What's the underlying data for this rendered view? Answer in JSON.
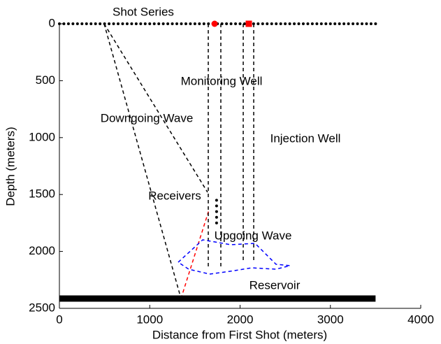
{
  "chart_data": {
    "type": "line",
    "xlabel": "Distance from First Shot (meters)",
    "ylabel": "Depth (meters)",
    "xlim": [
      0,
      4000
    ],
    "xticks": [
      0,
      1000,
      2000,
      3000,
      4000
    ],
    "ylim": [
      0,
      2500
    ],
    "yticks": [
      0,
      500,
      1000,
      1500,
      2000,
      2500
    ],
    "y_inverted": true,
    "annotations": [
      "Shot Series",
      "Monitoring Well",
      "Downgoing Wave",
      "Injection Well",
      "Receivers",
      "Upgoing Wave",
      "Reservoir"
    ],
    "series": [
      {
        "color": "#000000",
        "style": "dots",
        "x": [
          0,
          50,
          100,
          150,
          200,
          250,
          300,
          350,
          400,
          450,
          500,
          550,
          600,
          650,
          700,
          750,
          800,
          850,
          900,
          950,
          1000,
          1050,
          1100,
          1150,
          1200,
          1250,
          1300,
          1350,
          1400,
          1450,
          1500,
          1550,
          1600,
          1650,
          1700,
          1750,
          1800,
          1850,
          1900,
          1950,
          2000,
          2050,
          2100,
          2150,
          2200,
          2250,
          2300,
          2350,
          2400,
          2450,
          2500,
          2550,
          2600,
          2650,
          2700,
          2750,
          2800,
          2850,
          2900,
          2950,
          3000,
          3050,
          3100,
          3150,
          3200,
          3250,
          3300,
          3350,
          3400,
          3450,
          3500
        ],
        "values": [
          0,
          0,
          0,
          0,
          0,
          0,
          0,
          0,
          0,
          0,
          0,
          0,
          0,
          0,
          0,
          0,
          0,
          0,
          0,
          0,
          0,
          0,
          0,
          0,
          0,
          0,
          0,
          0,
          0,
          0,
          0,
          0,
          0,
          0,
          0,
          0,
          0,
          0,
          0,
          0,
          0,
          0,
          0,
          0,
          0,
          0,
          0,
          0,
          0,
          0,
          0,
          0,
          0,
          0,
          0,
          0,
          0,
          0,
          0,
          0,
          0,
          0,
          0,
          0,
          0,
          0,
          0,
          0,
          0,
          0,
          0
        ]
      },
      {
        "color": "#ff0000",
        "style": "circle",
        "x": [
          1718
        ],
        "values": [
          0
        ]
      },
      {
        "color": "#ff0000",
        "style": "square",
        "x": [
          2097
        ],
        "values": [
          0
        ]
      },
      {
        "color": "#000000",
        "style": "dashed",
        "x": [
          495,
          1346
        ],
        "values": [
          0,
          2414
        ]
      },
      {
        "color": "#000000",
        "style": "dashed",
        "x": [
          495,
          1640
        ],
        "values": [
          0,
          1480
        ]
      },
      {
        "color": "#ff0000",
        "style": "dashed",
        "x": [
          1346,
          1650
        ],
        "values": [
          2414,
          1650
        ]
      },
      {
        "color": "#000000",
        "style": "dashed",
        "x": [
          1648,
          1648
        ],
        "values": [
          0,
          2150
        ]
      },
      {
        "color": "#000000",
        "style": "dashed",
        "x": [
          1787,
          1787
        ],
        "values": [
          0,
          2150
        ]
      },
      {
        "color": "#000000",
        "style": "dashed",
        "x": [
          2035,
          2035
        ],
        "values": [
          0,
          2100
        ]
      },
      {
        "color": "#000000",
        "style": "dashed",
        "x": [
          2151,
          2151
        ],
        "values": [
          0,
          2100
        ]
      },
      {
        "color": "#0000ff",
        "style": "dashed",
        "x": [
          1315,
          1586,
          1896,
          2166,
          2398,
          2553,
          2398,
          2128,
          1896,
          1663,
          1431,
          1315
        ],
        "values": [
          2095,
          1898,
          1941,
          1929,
          2113,
          2125,
          2156,
          2144,
          2174,
          2199,
          2156,
          2095
        ]
      },
      {
        "color": "#000000",
        "style": "dots",
        "x": [
          1740,
          1740,
          1740,
          1740,
          1740
        ],
        "values": [
          1550,
          1600,
          1650,
          1700,
          1750
        ]
      },
      {
        "color": "#000000",
        "style": "bar",
        "x": [
          0,
          3500
        ],
        "values": [
          2414,
          2414
        ]
      }
    ]
  }
}
